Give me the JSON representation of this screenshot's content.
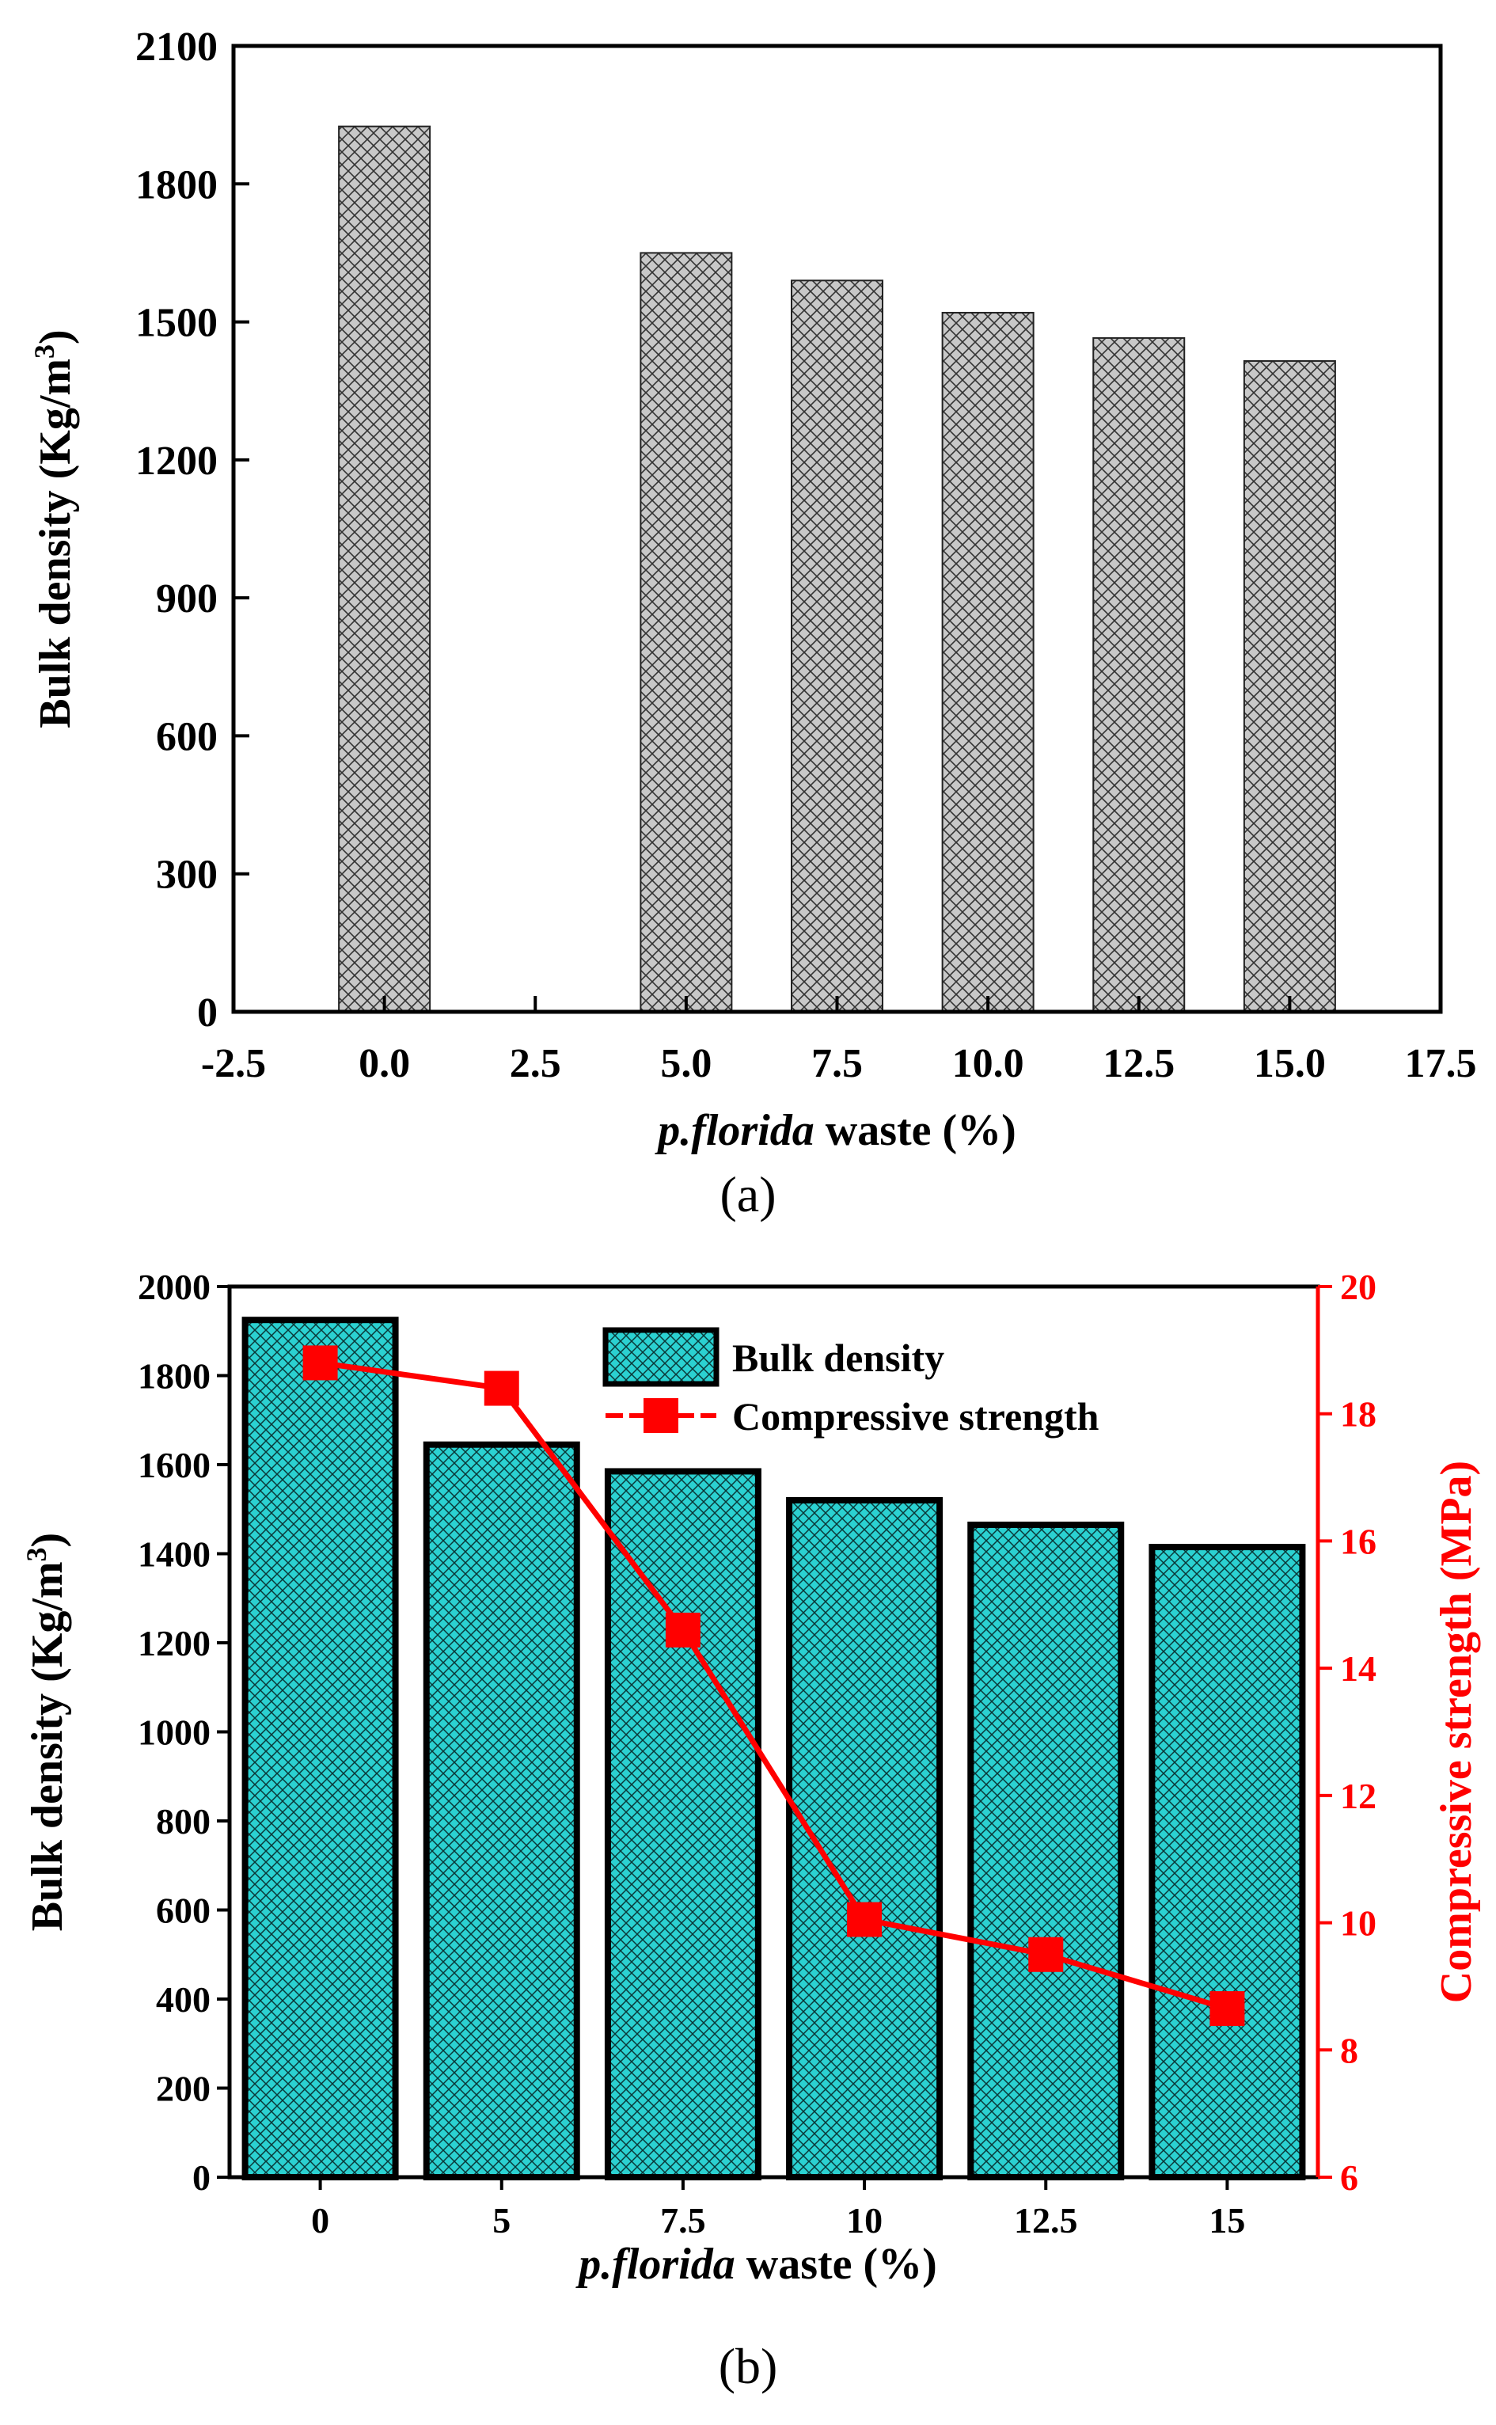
{
  "chart_data": [
    {
      "type": "bar",
      "caption": "(a)",
      "x": [
        0.0,
        5.0,
        7.5,
        10.0,
        12.5,
        15.0
      ],
      "values": [
        1925,
        1650,
        1590,
        1520,
        1465,
        1415
      ],
      "xlim": [
        -2.5,
        17.5
      ],
      "ylim": [
        0,
        2100
      ],
      "xticks": [
        "-2.5",
        "0.0",
        "2.5",
        "5.0",
        "7.5",
        "10.0",
        "12.5",
        "15.0",
        "17.5"
      ],
      "yticks": [
        "0",
        "300",
        "600",
        "900",
        "1200",
        "1500",
        "1800",
        "2100"
      ],
      "xlabel_italic": "p.florida",
      "xlabel_rest": " waste (%)",
      "ylabel_main": "Bulk density (Kg/m",
      "ylabel_sup": "3",
      "ylabel_close": ")",
      "colors": {
        "bar_fill": "#c8c8c8",
        "hatch": "#333333"
      }
    },
    {
      "type": "bar+line",
      "caption": "(b)",
      "categories": [
        "0",
        "5",
        "7.5",
        "10",
        "12.5",
        "15"
      ],
      "series": [
        {
          "name": "Bulk density",
          "axis": "left",
          "values": [
            1925,
            1645,
            1585,
            1520,
            1465,
            1415
          ]
        },
        {
          "name": "Compressive strength",
          "axis": "right",
          "values": [
            18.8,
            18.4,
            14.6,
            10.05,
            9.5,
            8.65
          ]
        }
      ],
      "ylim_left": [
        0,
        2000
      ],
      "ylim_right": [
        6,
        20
      ],
      "yticks_left": [
        "0",
        "200",
        "400",
        "600",
        "800",
        "1000",
        "1200",
        "1400",
        "1600",
        "1800",
        "2000"
      ],
      "yticks_right": [
        "6",
        "8",
        "10",
        "12",
        "14",
        "16",
        "18",
        "20"
      ],
      "xlabel_italic": "p.florida",
      "xlabel_rest": " waste (%)",
      "ylabel_left_main": "Bulk density (Kg/m",
      "ylabel_left_sup": "3",
      "ylabel_left_close": ")",
      "ylabel_right": "Compressive strength (MPa)",
      "legend_position": "top-center",
      "colors": {
        "bar_fill": "#2bd1d1",
        "hatch": "#0a3838",
        "line": "#ff0000"
      }
    }
  ]
}
